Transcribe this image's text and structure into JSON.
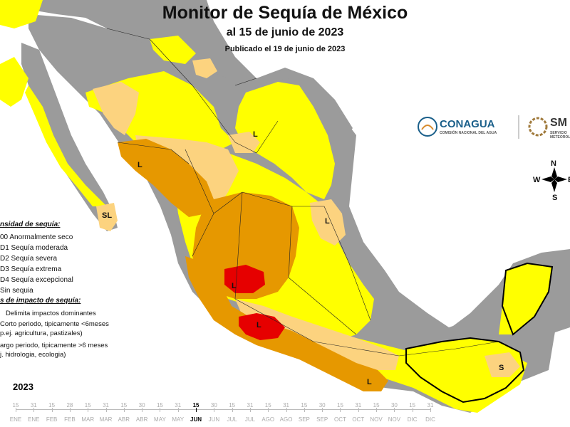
{
  "title": "Monitor de Sequía de México",
  "subtitle": "al 15 de junio de 2023",
  "published": "Publicado el 19 de junio de 2023",
  "legend": {
    "intensity_header": "nsidad de sequía:",
    "items": [
      {
        "label": "00 Anormalmente seco",
        "color": "#ffff00"
      },
      {
        "label": "D1 Sequía moderada",
        "color": "#fcd37f"
      },
      {
        "label": "D2 Sequía severa",
        "color": "#e69800"
      },
      {
        "label": "D3 Sequía extrema",
        "color": "#e60000"
      },
      {
        "label": "D4 Sequía excepcional",
        "color": "#730000"
      },
      {
        "label": "Sin sequia",
        "color": "#ffffff"
      }
    ],
    "impact_header": "s de impacto de sequía:",
    "impacts": [
      {
        "line1": "Delimita impactos dominantes"
      },
      {
        "line1": "Corto periodo, tipicamente <6meses",
        "line2": "p.ej. agricultura, pastizales)"
      },
      {
        "line1": "argo periodo, tipicamente >6 meses",
        "line2": "j. hidrologia, ecologia)"
      }
    ]
  },
  "map_labels": {
    "l1": "L",
    "l2": "L",
    "l3": "L",
    "l4": "L",
    "l5": "L",
    "l6": "L",
    "s1": "S",
    "sl": "SL"
  },
  "logos": {
    "conagua": "CONAGUA",
    "conagua_sub": "COMISIÓN NACIONAL DEL AGUA",
    "smn": "SM",
    "smn_sub": "SERVICIO METEOROL"
  },
  "compass": {
    "n": "N",
    "s": "S",
    "e": "E",
    "w": "W"
  },
  "timeline": {
    "year": "2023",
    "numbers": [
      "15",
      "31",
      "15",
      "28",
      "15",
      "31",
      "15",
      "30",
      "15",
      "31",
      "15",
      "30",
      "15",
      "31",
      "15",
      "31",
      "15",
      "30",
      "15",
      "31",
      "15",
      "30",
      "15",
      "31"
    ],
    "months": [
      "ENE",
      "ENE",
      "FEB",
      "FEB",
      "MAR",
      "MAR",
      "ABR",
      "ABR",
      "MAY",
      "MAY",
      "JUN",
      "JUN",
      "JUL",
      "JUL",
      "AGO",
      "AGO",
      "SEP",
      "SEP",
      "OCT",
      "OCT",
      "NOV",
      "NOV",
      "DIC",
      "DIC"
    ],
    "current_index": 10
  },
  "colors": {
    "ocean": "#ffffff",
    "land_gray": "#9b9b9b",
    "d0": "#ffff00",
    "d1": "#fcd37f",
    "d2": "#e69800",
    "d3": "#e60000"
  }
}
